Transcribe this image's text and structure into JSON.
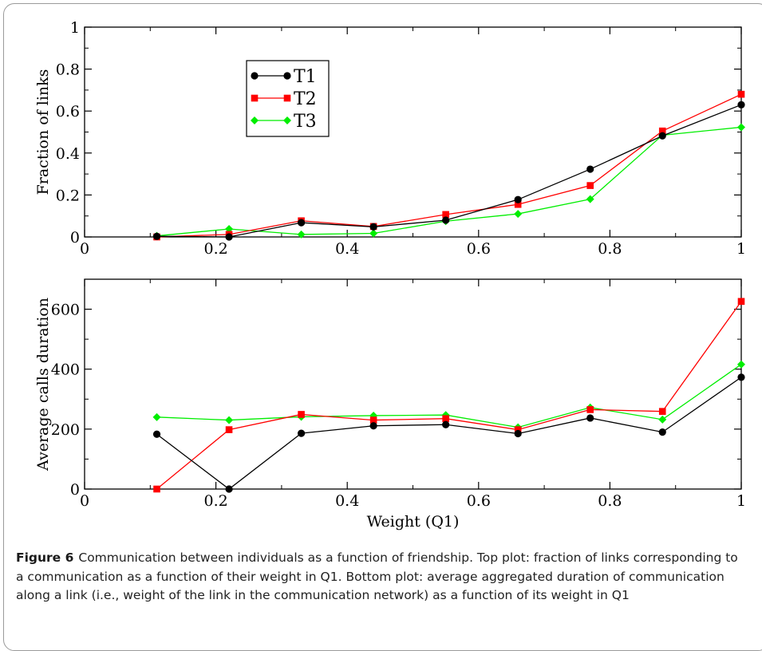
{
  "figure_label": "Figure 6",
  "figure_caption": "Communication between individuals as a function of friendship. Top plot: fraction of links corresponding to a communication as a function of their weight in Q1. Bottom plot: average aggregated duration of communication along a link (i.e., weight of the link in the communication network) as a function of its weight in Q1",
  "colors": {
    "T1": "#000000",
    "T2": "#ff0000",
    "T3": "#00ee00"
  },
  "chart_data": [
    {
      "type": "line",
      "title": "",
      "xlabel": "",
      "ylabel": "Fraction of links",
      "xlim": [
        0,
        1
      ],
      "ylim": [
        0,
        1
      ],
      "xticks": [
        "0",
        "0.2",
        "0.4",
        "0.6",
        "0.8",
        "1"
      ],
      "yticks": [
        "0",
        "0.2",
        "0.4",
        "0.6",
        "0.8",
        "1"
      ],
      "legend_position": "top-left",
      "series": [
        {
          "name": "T1",
          "marker": "circle",
          "color": "#000000",
          "x": [
            0.11,
            0.22,
            0.33,
            0.44,
            0.55,
            0.66,
            0.77,
            0.88,
            1.0
          ],
          "y": [
            0.003,
            0.0,
            0.068,
            0.048,
            0.08,
            0.178,
            0.323,
            0.482,
            0.63
          ]
        },
        {
          "name": "T2",
          "marker": "square",
          "color": "#ff0000",
          "x": [
            0.11,
            0.22,
            0.33,
            0.44,
            0.55,
            0.66,
            0.77,
            0.88,
            1.0
          ],
          "y": [
            0.0,
            0.012,
            0.077,
            0.05,
            0.107,
            0.155,
            0.245,
            0.505,
            0.68
          ]
        },
        {
          "name": "T3",
          "marker": "diamond",
          "color": "#00ee00",
          "x": [
            0.11,
            0.22,
            0.33,
            0.44,
            0.55,
            0.66,
            0.77,
            0.88,
            1.0
          ],
          "y": [
            0.005,
            0.038,
            0.012,
            0.017,
            0.075,
            0.11,
            0.18,
            0.485,
            0.523
          ]
        }
      ]
    },
    {
      "type": "line",
      "title": "",
      "xlabel": "Weight (Q1)",
      "ylabel": "Average calls duration",
      "xlim": [
        0,
        1
      ],
      "ylim": [
        0,
        700
      ],
      "xticks": [
        "0",
        "0.2",
        "0.4",
        "0.6",
        "0.8",
        "1"
      ],
      "yticks": [
        "0",
        "200",
        "400",
        "600"
      ],
      "series": [
        {
          "name": "T1",
          "marker": "circle",
          "color": "#000000",
          "x": [
            0.11,
            0.22,
            0.33,
            0.44,
            0.55,
            0.66,
            0.77,
            0.88,
            1.0
          ],
          "y": [
            183,
            0,
            186,
            211,
            215,
            185,
            237,
            190,
            373
          ]
        },
        {
          "name": "T2",
          "marker": "square",
          "color": "#ff0000",
          "x": [
            0.11,
            0.22,
            0.33,
            0.44,
            0.55,
            0.66,
            0.77,
            0.88,
            1.0
          ],
          "y": [
            0,
            198,
            249,
            230,
            235,
            198,
            265,
            259,
            626
          ]
        },
        {
          "name": "T3",
          "marker": "diamond",
          "color": "#00ee00",
          "x": [
            0.11,
            0.22,
            0.33,
            0.44,
            0.55,
            0.66,
            0.77,
            0.88,
            1.0
          ],
          "y": [
            240,
            230,
            241,
            245,
            247,
            206,
            272,
            232,
            416
          ]
        }
      ]
    }
  ]
}
